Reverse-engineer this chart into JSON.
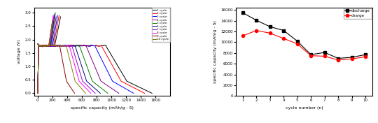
{
  "left_chart": {
    "xlabel": "specific capacity (mAh/g - S)",
    "ylabel": "voltage (V)",
    "ylim": [
      -0.1,
      3.2
    ],
    "xlim": [
      -50,
      1800
    ],
    "xticks": [
      0,
      200,
      400,
      600,
      800,
      1000,
      1200,
      1400,
      1600
    ],
    "yticks": [
      0.0,
      0.5,
      1.0,
      1.5,
      2.0,
      2.5,
      3.0
    ],
    "cycles": [
      {
        "label": "1 cycle",
        "color": "#000000",
        "max_cap": 1550,
        "charge_max": 310,
        "v_top": 2.85
      },
      {
        "label": "2 cycle",
        "color": "#ff0000",
        "max_cap": 1450,
        "charge_max": 290,
        "v_top": 2.9
      },
      {
        "label": "3 cycle",
        "color": "#0000ff",
        "max_cap": 1300,
        "charge_max": 270,
        "v_top": 2.9
      },
      {
        "label": "4 cycle",
        "color": "#800080",
        "max_cap": 1100,
        "charge_max": 250,
        "v_top": 2.85
      },
      {
        "label": "5 cycle",
        "color": "#008000",
        "max_cap": 950,
        "charge_max": 240,
        "v_top": 3.0
      },
      {
        "label": "6 cycle",
        "color": "#000080",
        "max_cap": 850,
        "charge_max": 230,
        "v_top": 2.95
      },
      {
        "label": "7 cycle",
        "color": "#9400d3",
        "max_cap": 780,
        "charge_max": 220,
        "v_top": 2.9
      },
      {
        "label": "8 cycle",
        "color": "#ff00ff",
        "max_cap": 720,
        "charge_max": 210,
        "v_top": 2.9
      },
      {
        "label": "9 cycle",
        "color": "#8b0000",
        "max_cap": 500,
        "charge_max": 200,
        "v_top": 2.7
      },
      {
        "label": "10 cycle",
        "color": "#808000",
        "max_cap": 650,
        "charge_max": 205,
        "v_top": 2.75
      }
    ]
  },
  "right_chart": {
    "xlabel": "cycle number (n)",
    "ylabel": "specific capacity (mAh/g - S)",
    "xlim": [
      0.5,
      10.5
    ],
    "ylim": [
      0,
      16500
    ],
    "xticks": [
      1,
      2,
      3,
      4,
      5,
      6,
      7,
      8,
      9,
      10
    ],
    "yticks": [
      0,
      2000,
      4000,
      6000,
      8000,
      10000,
      12000,
      14000,
      16000
    ],
    "yticklabels": [
      "0",
      "2000",
      "4000",
      "6000",
      "8000",
      "10000",
      "12000",
      "14000",
      "16000"
    ],
    "discharge": {
      "label": "discharge",
      "color": "#000000",
      "marker": "s",
      "x": [
        1,
        2,
        3,
        4,
        5,
        6,
        7,
        8,
        9,
        10
      ],
      "y": [
        15500,
        14100,
        12900,
        12200,
        10200,
        7700,
        8100,
        7000,
        7200,
        7700
      ]
    },
    "charge": {
      "label": "charge",
      "color": "#ff0000",
      "marker": "o",
      "x": [
        1,
        2,
        3,
        4,
        5,
        6,
        7,
        8,
        9,
        10
      ],
      "y": [
        11200,
        12200,
        11700,
        10700,
        9700,
        7500,
        7400,
        6700,
        6900,
        7300
      ]
    }
  }
}
